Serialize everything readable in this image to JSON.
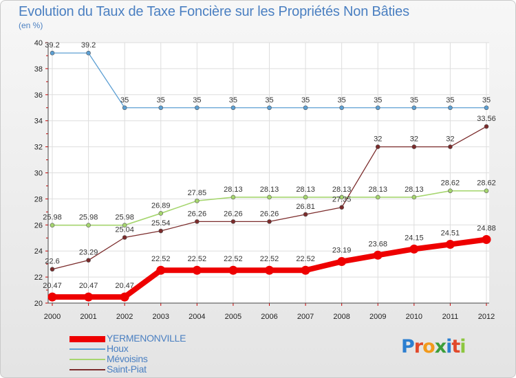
{
  "title": "Evolution du Taux de Taxe Foncière sur les Propriétés Non Bâties",
  "subtitle": "(en %)",
  "logo": "Proxiti",
  "logo_letters": [
    {
      "ch": "P",
      "color": "#2c7fd0"
    },
    {
      "ch": "r",
      "color": "#e1492b"
    },
    {
      "ch": "o",
      "color": "#f29a1c"
    },
    {
      "ch": "x",
      "color": "#3c9e3a"
    },
    {
      "ch": "i",
      "color": "#2c7fd0"
    },
    {
      "ch": "t",
      "color": "#e1492b"
    },
    {
      "ch": "i",
      "color": "#8cc63f"
    }
  ],
  "chart_data": {
    "type": "line",
    "title": "Evolution du Taux de Taxe Foncière sur les Propriétés Non Bâties",
    "ylabel": "(en %)",
    "xlabel": "",
    "x": [
      "2000",
      "2001",
      "2002",
      "2003",
      "2004",
      "2005",
      "2006",
      "2007",
      "2008",
      "2009",
      "2010",
      "2011",
      "2012"
    ],
    "ylim": [
      20,
      40
    ],
    "yticks": [
      "20",
      "22",
      "24",
      "26",
      "28",
      "30",
      "32",
      "34",
      "36",
      "38",
      "40"
    ],
    "grid": true,
    "legend_position": "bottom-left",
    "series": [
      {
        "name": "YERMENONVILLE",
        "color": "#ee0000",
        "values": [
          20.47,
          20.47,
          20.47,
          22.52,
          22.52,
          22.52,
          22.52,
          22.52,
          23.19,
          23.68,
          24.15,
          24.51,
          24.88
        ],
        "labels": [
          "20.47",
          "20.47",
          "20.47",
          "22.52",
          "22.52",
          "22.52",
          "22.52",
          "22.52",
          "23.19",
          "23.68",
          "24.15",
          "24.51",
          "24.88"
        ]
      },
      {
        "name": "Houx",
        "color": "#5c9fd3",
        "values": [
          39.2,
          39.2,
          35,
          35,
          35,
          35,
          35,
          35,
          35,
          35,
          35,
          35,
          35
        ],
        "labels": [
          "39.2",
          "39.2",
          "35",
          "35",
          "35",
          "35",
          "35",
          "35",
          "35",
          "35",
          "35",
          "35",
          "35"
        ]
      },
      {
        "name": "Mévoisins",
        "color": "#a6d66f",
        "values": [
          25.98,
          25.98,
          25.98,
          26.89,
          27.85,
          28.13,
          28.13,
          28.13,
          28.13,
          28.13,
          28.13,
          28.62,
          28.62
        ],
        "labels": [
          "25.98",
          "25.98",
          "25.98",
          "26.89",
          "27.85",
          "28.13",
          "28.13",
          "28.13",
          "28.13",
          "28.13",
          "28.13",
          "28.62",
          "28.62"
        ]
      },
      {
        "name": "Saint-Piat",
        "color": "#7b2b2b",
        "values": [
          22.6,
          23.29,
          25.04,
          25.54,
          26.26,
          26.26,
          26.26,
          26.81,
          27.35,
          32,
          32,
          32,
          33.56
        ],
        "labels": [
          "22.6",
          "23.29",
          "25.04",
          "25.54",
          "26.26",
          "26.26",
          "26.26",
          "26.81",
          "27.35",
          "32",
          "32",
          "32",
          "33.56"
        ]
      }
    ]
  }
}
